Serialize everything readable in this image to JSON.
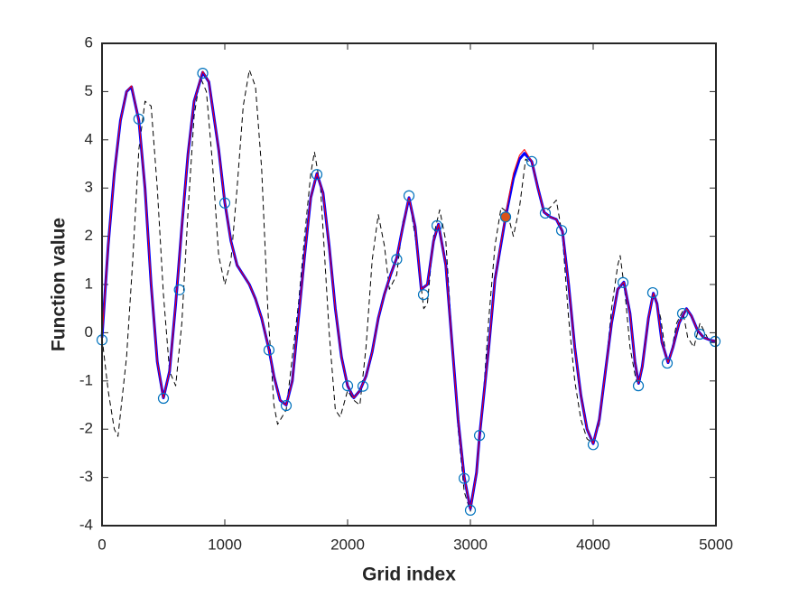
{
  "chart_data": {
    "type": "line",
    "xlabel": "Grid index",
    "ylabel": "Function value",
    "xlim": [
      0,
      5000
    ],
    "ylim": [
      -4,
      6
    ],
    "xticks": [
      0,
      1000,
      2000,
      3000,
      4000,
      5000
    ],
    "yticks": [
      -4,
      -3,
      -2,
      -1,
      0,
      1,
      2,
      3,
      4,
      5,
      6
    ],
    "box": true,
    "series": [
      {
        "color": "#000000",
        "dash": true,
        "width": 1,
        "x": [
          0,
          50,
          100,
          130,
          200,
          250,
          300,
          350,
          400,
          450,
          500,
          550,
          600,
          650,
          700,
          750,
          800,
          850,
          900,
          950,
          1000,
          1050,
          1100,
          1150,
          1200,
          1250,
          1300,
          1350,
          1400,
          1430,
          1500,
          1550,
          1600,
          1650,
          1700,
          1730,
          1780,
          1850,
          1900,
          1940,
          2000,
          2050,
          2100,
          2150,
          2200,
          2250,
          2300,
          2340,
          2400,
          2450,
          2500,
          2550,
          2620,
          2650,
          2700,
          2750,
          2800,
          2850,
          2900,
          2950,
          3000,
          3050,
          3100,
          3150,
          3200,
          3250,
          3300,
          3350,
          3400,
          3450,
          3500,
          3600,
          3650,
          3700,
          3750,
          3800,
          3850,
          3900,
          3950,
          4000,
          4050,
          4100,
          4150,
          4200,
          4220,
          4260,
          4300,
          4350,
          4380,
          4420,
          4480,
          4500,
          4550,
          4600,
          4620,
          4680,
          4730,
          4770,
          4820,
          4870,
          4910,
          4950,
          5000
        ],
        "values": [
          -0.1,
          -1.2,
          -2.0,
          -2.15,
          -0.5,
          1.5,
          3.8,
          4.8,
          4.7,
          3.0,
          0.8,
          -0.8,
          -1.1,
          0.2,
          2.5,
          4.5,
          5.3,
          5.0,
          3.5,
          1.6,
          1.0,
          1.5,
          3.0,
          4.7,
          5.45,
          5.1,
          3.4,
          0.5,
          -1.5,
          -1.9,
          -1.6,
          -0.5,
          0.6,
          2.0,
          3.3,
          3.75,
          3.0,
          0.0,
          -1.6,
          -1.75,
          -1.2,
          -1.4,
          -1.5,
          -0.3,
          1.5,
          2.45,
          1.8,
          0.9,
          1.2,
          2.3,
          2.8,
          2.0,
          0.5,
          0.6,
          2.0,
          2.55,
          1.9,
          -0.1,
          -2.0,
          -3.3,
          -3.7,
          -3.0,
          -1.5,
          0.3,
          1.8,
          2.6,
          2.5,
          2.0,
          2.6,
          3.6,
          3.5,
          2.5,
          2.6,
          2.75,
          2.0,
          0.3,
          -1.0,
          -1.8,
          -2.2,
          -2.3,
          -1.9,
          -0.8,
          0.5,
          1.4,
          1.6,
          0.8,
          -0.3,
          -1.0,
          -1.05,
          -0.3,
          0.7,
          0.8,
          0.3,
          -0.6,
          -0.63,
          0.2,
          0.45,
          -0.1,
          -0.3,
          0.2,
          0.0,
          -0.2,
          -0.2
        ]
      },
      {
        "color": "#0000ff",
        "width": 3,
        "x": [
          0,
          50,
          100,
          150,
          200,
          240,
          300,
          350,
          400,
          450,
          500,
          550,
          600,
          650,
          700,
          750,
          820,
          870,
          950,
          1000,
          1050,
          1100,
          1200,
          1250,
          1300,
          1360,
          1400,
          1450,
          1500,
          1550,
          1600,
          1650,
          1700,
          1750,
          1800,
          1850,
          1900,
          1950,
          2000,
          2050,
          2100,
          2150,
          2200,
          2250,
          2300,
          2350,
          2400,
          2450,
          2500,
          2550,
          2600,
          2650,
          2700,
          2740,
          2800,
          2850,
          2900,
          2950,
          3000,
          3050,
          3074,
          3150,
          3200,
          3287,
          3350,
          3400,
          3440,
          3500,
          3550,
          3600,
          3650,
          3700,
          3750,
          3800,
          3850,
          3900,
          3950,
          4000,
          4050,
          4100,
          4150,
          4200,
          4250,
          4300,
          4340,
          4370,
          4400,
          4450,
          4490,
          4520,
          4560,
          4610,
          4650,
          4700,
          4760,
          4800,
          4850,
          4900,
          4950,
          5000
        ],
        "values": [
          -0.1,
          1.8,
          3.3,
          4.4,
          5.0,
          5.1,
          4.4,
          3.0,
          1.0,
          -0.6,
          -1.35,
          -0.8,
          0.6,
          2.2,
          3.7,
          4.8,
          5.4,
          5.2,
          3.8,
          2.7,
          1.9,
          1.4,
          1.0,
          0.7,
          0.3,
          -0.35,
          -0.9,
          -1.4,
          -1.5,
          -1.0,
          0.3,
          1.6,
          2.8,
          3.3,
          2.9,
          1.8,
          0.5,
          -0.5,
          -1.1,
          -1.35,
          -1.2,
          -0.9,
          -0.4,
          0.3,
          0.8,
          1.2,
          1.55,
          2.2,
          2.8,
          2.2,
          0.9,
          1.0,
          1.9,
          2.25,
          1.4,
          -0.2,
          -1.8,
          -3.0,
          -3.65,
          -2.9,
          -2.15,
          -0.3,
          1.1,
          2.4,
          3.2,
          3.6,
          3.72,
          3.55,
          3.0,
          2.5,
          2.4,
          2.35,
          2.1,
          1.0,
          -0.3,
          -1.3,
          -2.0,
          -2.3,
          -1.8,
          -0.8,
          0.2,
          0.9,
          1.05,
          0.4,
          -0.6,
          -1.05,
          -0.7,
          0.3,
          0.82,
          0.6,
          -0.2,
          -0.62,
          -0.3,
          0.2,
          0.5,
          0.35,
          0.05,
          -0.1,
          -0.15,
          -0.18
        ]
      },
      {
        "color": "#ff0000",
        "width": 1,
        "x": [
          0,
          50,
          100,
          150,
          200,
          240,
          300,
          350,
          400,
          450,
          500,
          550,
          600,
          650,
          700,
          750,
          820,
          870,
          950,
          1000,
          1050,
          1100,
          1200,
          1250,
          1300,
          1360,
          1400,
          1450,
          1500,
          1550,
          1600,
          1650,
          1700,
          1750,
          1800,
          1850,
          1900,
          1950,
          2000,
          2050,
          2100,
          2150,
          2200,
          2250,
          2300,
          2350,
          2400,
          2450,
          2500,
          2550,
          2600,
          2650,
          2700,
          2740,
          2800,
          2850,
          2900,
          2950,
          3000,
          3050,
          3074,
          3150,
          3200,
          3287,
          3350,
          3400,
          3440,
          3500,
          3550,
          3600,
          3650,
          3700,
          3750,
          3800,
          3850,
          3900,
          3950,
          4000,
          4050,
          4100,
          4150,
          4200,
          4250,
          4300,
          4340,
          4370,
          4400,
          4450,
          4490,
          4520,
          4560,
          4610,
          4650,
          4700,
          4760,
          4800,
          4850,
          4900,
          4950,
          5000
        ],
        "values": [
          -0.1,
          1.8,
          3.3,
          4.4,
          5.0,
          5.12,
          4.4,
          3.0,
          1.0,
          -0.6,
          -1.35,
          -0.8,
          0.6,
          2.2,
          3.7,
          4.8,
          5.42,
          5.2,
          3.8,
          2.7,
          1.9,
          1.4,
          1.0,
          0.7,
          0.3,
          -0.35,
          -0.9,
          -1.4,
          -1.5,
          -1.0,
          0.3,
          1.6,
          2.8,
          3.3,
          2.9,
          1.8,
          0.5,
          -0.5,
          -1.1,
          -1.35,
          -1.2,
          -0.9,
          -0.4,
          0.3,
          0.8,
          1.2,
          1.55,
          2.2,
          2.8,
          2.2,
          0.9,
          1.0,
          1.9,
          2.25,
          1.4,
          -0.2,
          -1.8,
          -3.0,
          -3.65,
          -2.9,
          -2.15,
          -0.3,
          1.1,
          2.45,
          3.3,
          3.68,
          3.8,
          3.55,
          3.0,
          2.5,
          2.4,
          2.35,
          2.1,
          1.0,
          -0.3,
          -1.3,
          -2.0,
          -2.3,
          -1.8,
          -0.8,
          0.2,
          0.9,
          1.05,
          0.4,
          -0.6,
          -1.05,
          -0.7,
          0.3,
          0.82,
          0.6,
          -0.2,
          -0.62,
          -0.3,
          0.2,
          0.5,
          0.35,
          0.05,
          -0.1,
          -0.15,
          -0.18
        ]
      },
      {
        "color": "#0072bd",
        "marker": "circle",
        "line": false,
        "x": [
          0,
          300,
          500,
          630,
          820,
          1000,
          1360,
          1500,
          1750,
          2000,
          2125,
          2400,
          2500,
          2618,
          2728,
          2949,
          3000,
          3074,
          3500,
          3610,
          3743,
          4000,
          4243,
          4368,
          4485,
          4603,
          4728,
          4868,
          4993
        ],
        "values": [
          -0.15,
          4.43,
          -1.36,
          0.89,
          5.38,
          2.69,
          -0.36,
          -1.51,
          3.28,
          -1.1,
          -1.11,
          1.52,
          2.84,
          0.79,
          2.22,
          -3.02,
          -3.68,
          -2.13,
          3.55,
          2.48,
          2.12,
          -2.32,
          1.04,
          -1.1,
          0.83,
          -0.63,
          0.4,
          -0.03,
          -0.18
        ]
      },
      {
        "color": "#d95319",
        "marker": "filled",
        "line": false,
        "x": [
          3287
        ],
        "values": [
          2.4
        ]
      }
    ]
  }
}
